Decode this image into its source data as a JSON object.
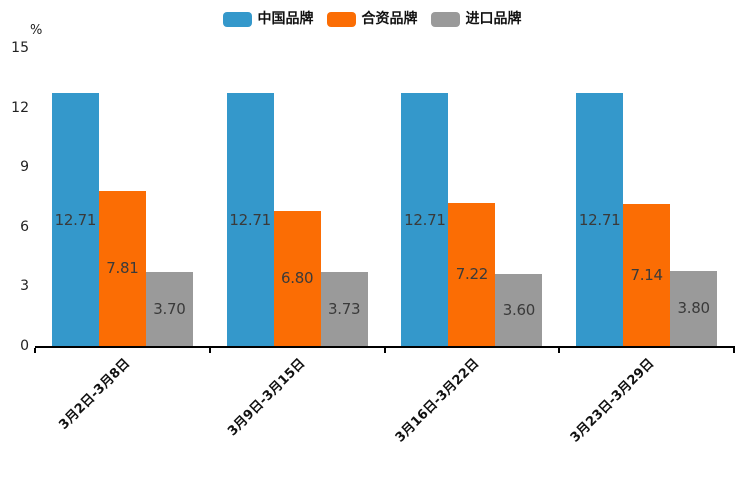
{
  "chart_data": {
    "type": "bar",
    "title": "",
    "xlabel": "",
    "ylabel": "%",
    "ylim": [
      0,
      15
    ],
    "yticks": [
      0,
      3,
      6,
      9,
      12,
      15
    ],
    "grid": false,
    "legend_position": "top-center",
    "categories": [
      "3月2日-3月8日",
      "3月9日-3月15日",
      "3月16日-3月22日",
      "3月23日-3月29日"
    ],
    "series": [
      {
        "name": "中国品牌",
        "color": "#3498cb",
        "values": [
          12.71,
          12.71,
          12.71,
          12.71
        ]
      },
      {
        "name": "合资品牌",
        "color": "#fb6d04",
        "values": [
          7.81,
          6.8,
          7.22,
          7.14
        ]
      },
      {
        "name": "进口品牌",
        "color": "#9a9a9a",
        "values": [
          3.7,
          3.73,
          3.6,
          3.8
        ]
      }
    ],
    "value_labels": {
      "visible": true,
      "decimals": 2,
      "color": "#3a3a3a",
      "position": "inside-center"
    }
  },
  "colors": {
    "background": "#ffffff",
    "axis": "#000000",
    "tick_label": "#222222"
  }
}
